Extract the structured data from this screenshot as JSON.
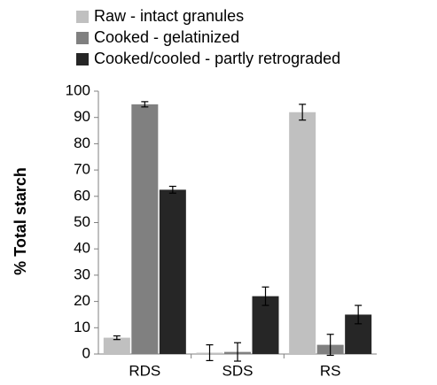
{
  "chart_data": {
    "type": "bar",
    "ylabel": "% Total starch",
    "categories": [
      "RDS",
      "SDS",
      "RS"
    ],
    "series": [
      {
        "name": "Raw - intact granules",
        "color": "#c0c0c0",
        "values": [
          6.2,
          0.5,
          92
        ],
        "errors": [
          0.7,
          3,
          3
        ]
      },
      {
        "name": "Cooked - gelatinized",
        "color": "#808080",
        "values": [
          95,
          0.8,
          3.5
        ],
        "errors": [
          1,
          3.5,
          4
        ]
      },
      {
        "name": "Cooked/cooled - partly retrograded",
        "color": "#262626",
        "values": [
          62.5,
          22,
          15
        ],
        "errors": [
          1.3,
          3.5,
          3.5
        ]
      }
    ],
    "ylim": [
      0,
      100
    ],
    "yticks": [
      0,
      10,
      20,
      30,
      40,
      50,
      60,
      70,
      80,
      90,
      100
    ],
    "legend": "top-left",
    "grid": false
  }
}
